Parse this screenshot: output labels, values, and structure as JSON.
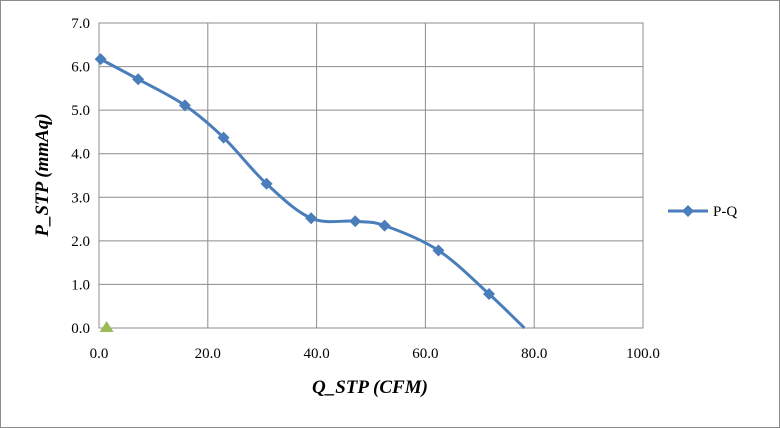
{
  "chart_data": {
    "type": "line",
    "xlabel": "Q_STP (CFM)",
    "ylabel": "P_STP (mmAq)",
    "xlim": [
      0,
      100
    ],
    "ylim": [
      0,
      7
    ],
    "x_ticks": [
      "0.0",
      "20.0",
      "40.0",
      "60.0",
      "80.0",
      "100.0"
    ],
    "y_ticks": [
      "0.0",
      "1.0",
      "2.0",
      "3.0",
      "4.0",
      "5.0",
      "6.0",
      "7.0"
    ],
    "grid": true,
    "legend_position": "right",
    "series": [
      {
        "name": "P-Q",
        "color": "#4a7ebb",
        "marker": "diamond",
        "smooth": true,
        "x": [
          0.3,
          7.2,
          15.8,
          22.9,
          30.8,
          39.0,
          47.1,
          52.5,
          62.4,
          71.7,
          78.2
        ],
        "y": [
          6.17,
          5.71,
          5.11,
          4.37,
          3.31,
          2.52,
          2.45,
          2.35,
          1.78,
          0.78,
          0.0
        ],
        "marker_count": 10
      }
    ],
    "extra_points": [
      {
        "x": 1.4,
        "y": 0.0,
        "marker": "triangle",
        "color": "#9bbb59"
      }
    ]
  }
}
